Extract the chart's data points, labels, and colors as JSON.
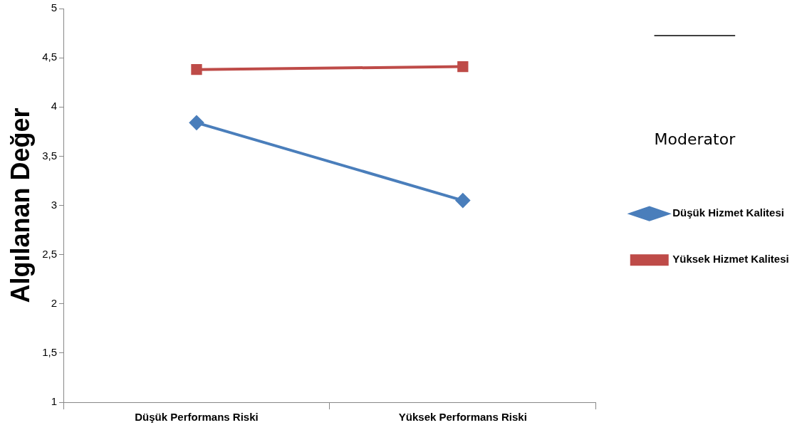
{
  "chart_data": {
    "type": "line",
    "ylabel": "Algılanan Değer",
    "legend_title": "Moderator",
    "categories": [
      "Düşük Performans Riski",
      "Yüksek Performans Riski"
    ],
    "series": [
      {
        "name": "Düşük Hizmet Kalitesi",
        "color": "#4a7ebb",
        "marker": "diamond",
        "values": [
          3.84,
          3.05
        ]
      },
      {
        "name": "Yüksek Hizmet Kalitesi",
        "color": "#be4b48",
        "marker": "square",
        "values": [
          4.38,
          4.41
        ]
      }
    ],
    "ylim": [
      1,
      5
    ],
    "yticks": [
      1,
      {
        "value": 1.5,
        "label": "1,5"
      },
      2,
      {
        "value": 2.5,
        "label": "2,5"
      },
      3,
      {
        "value": 3.5,
        "label": "3,5"
      },
      4,
      {
        "value": 4.5,
        "label": "4,5"
      },
      5
    ],
    "grid": false,
    "legend": "right",
    "line_style": "solid"
  }
}
